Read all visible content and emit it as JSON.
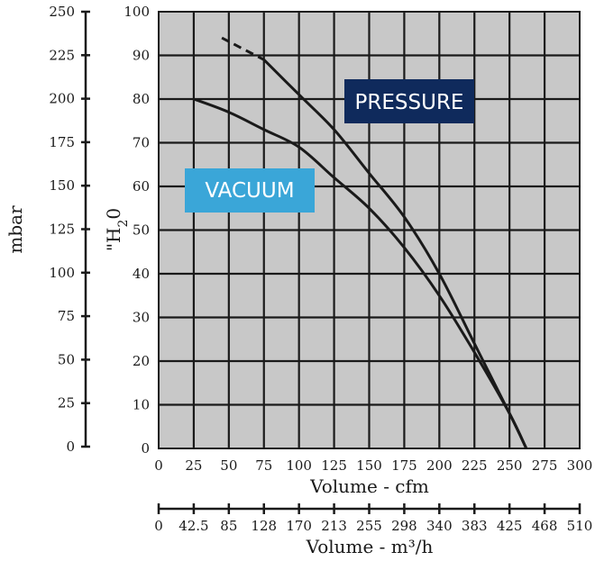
{
  "chart_data": {
    "type": "line",
    "title": "",
    "x_cfm": {
      "label": "Volume - cfm",
      "range": [
        0,
        300
      ],
      "ticks": [
        "0",
        "25",
        "50",
        "75",
        "100",
        "125",
        "150",
        "175",
        "200",
        "225",
        "250",
        "275",
        "300"
      ]
    },
    "x_m3h": {
      "label": "Volume - m³/h",
      "range": [
        0,
        510
      ],
      "ticks": [
        "0",
        "42.5",
        "85",
        "128",
        "170",
        "213",
        "255",
        "298",
        "340",
        "383",
        "425",
        "468",
        "510"
      ]
    },
    "y_h2o": {
      "label": "\"H20",
      "range": [
        0,
        100
      ],
      "ticks": [
        "0",
        "10",
        "20",
        "30",
        "40",
        "50",
        "60",
        "70",
        "80",
        "90",
        "100"
      ]
    },
    "y_mbar": {
      "label": "mbar",
      "range": [
        0,
        250
      ],
      "ticks": [
        "0",
        "25",
        "50",
        "75",
        "100",
        "125",
        "150",
        "175",
        "200",
        "225",
        "250"
      ]
    },
    "grid": true,
    "series": [
      {
        "name": "PRESSURE",
        "color": "#1a1a1a",
        "dashed_until_x": 75,
        "x": [
          45,
          75,
          100,
          125,
          150,
          175,
          200,
          225,
          250,
          262
        ],
        "y": [
          94,
          89,
          81,
          73,
          63,
          53,
          40,
          24,
          8,
          0
        ]
      },
      {
        "name": "VACUUM",
        "color": "#1a1a1a",
        "x": [
          25,
          50,
          75,
          100,
          125,
          150,
          175,
          200,
          225,
          250,
          262
        ],
        "y": [
          80,
          77,
          73,
          69,
          62,
          55,
          46,
          35,
          22,
          8,
          0
        ]
      }
    ],
    "annotations": [
      {
        "text": "PRESSURE",
        "bg": "#0f2a5c",
        "fg": "#ffffff"
      },
      {
        "text": "VACUUM",
        "bg": "#3aa6d8",
        "fg": "#ffffff"
      }
    ]
  }
}
